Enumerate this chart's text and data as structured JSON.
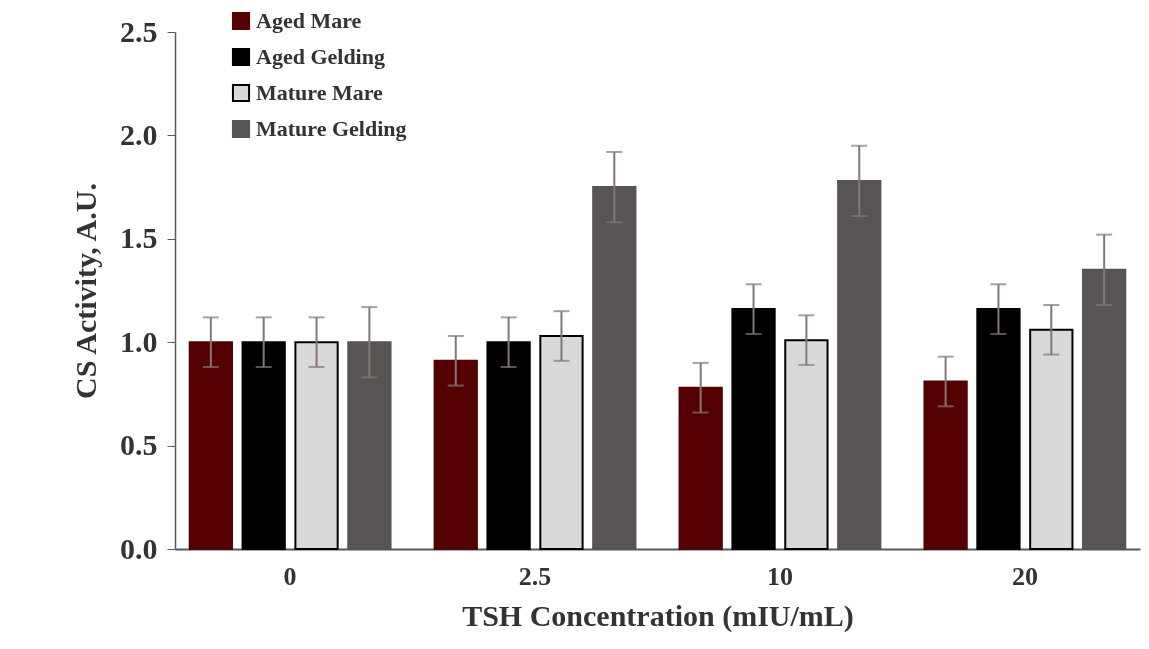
{
  "chart_data": {
    "type": "bar",
    "xlabel": "TSH Concentration (mIU/mL)",
    "ylabel": "CS Activity, A.U.",
    "categories": [
      "0",
      "2.5",
      "10",
      "20"
    ],
    "series": [
      {
        "name": "Aged Mare",
        "color": "#550000",
        "values": [
          1.0,
          0.91,
          0.78,
          0.81
        ],
        "errors": [
          0.12,
          0.12,
          0.12,
          0.12
        ]
      },
      {
        "name": "Aged Gelding",
        "color": "#000000",
        "values": [
          1.0,
          1.0,
          1.16,
          1.16
        ],
        "errors": [
          0.12,
          0.12,
          0.12,
          0.12
        ]
      },
      {
        "name": "Mature Mare",
        "color": "#d9d9d9",
        "values": [
          1.0,
          1.03,
          1.01,
          1.06
        ],
        "errors": [
          0.12,
          0.12,
          0.12,
          0.12
        ]
      },
      {
        "name": "Mature Gelding",
        "color": "#595454",
        "values": [
          1.0,
          1.75,
          1.78,
          1.35
        ],
        "errors": [
          0.17,
          0.17,
          0.17,
          0.17
        ]
      }
    ],
    "ylim": [
      0,
      2.5
    ],
    "yticks": [
      {
        "value": 0,
        "label": "0.0"
      },
      0.5,
      {
        "value": 1,
        "label": "1.0"
      },
      1.5,
      {
        "value": 2,
        "label": "2.0"
      },
      2.5
    ],
    "legend": "top left",
    "grid": false
  }
}
